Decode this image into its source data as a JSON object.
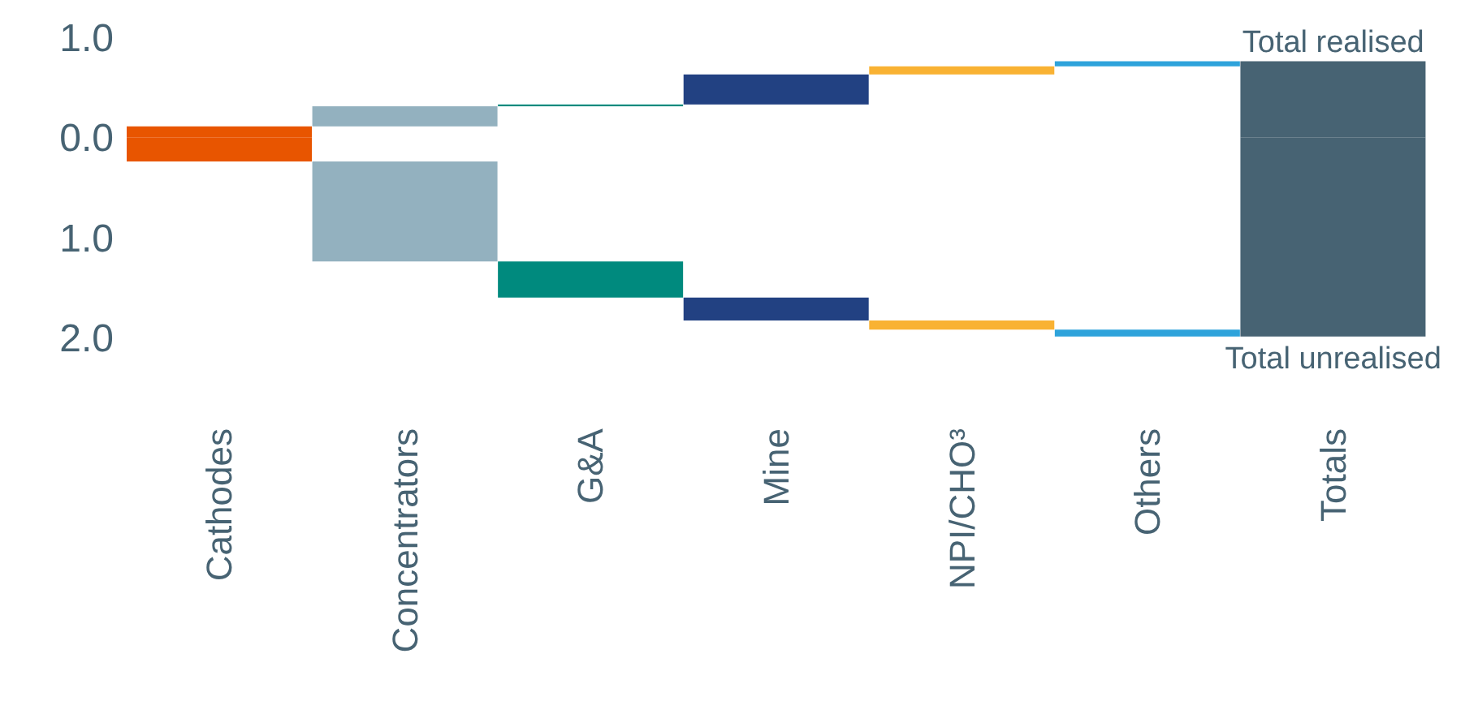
{
  "chart_data": {
    "type": "bar",
    "categories": [
      "Cathodes",
      "Concentrators",
      "G&A",
      "Mine",
      "NPI/CHO³",
      "Others",
      "Totals"
    ],
    "series": [
      {
        "colors": [
          "#e85500",
          "#93b1bf",
          "#008a7e",
          "#224182",
          "#f9b233",
          "#2ea3db",
          "#476373"
        ],
        "values": [
          0.11,
          0.2,
          0.02,
          0.3,
          0.08,
          0.05,
          0.76
        ],
        "base": [
          0,
          0.11,
          0.31,
          0.33,
          0.63,
          0.71,
          0
        ]
      },
      {
        "colors": [
          "#e85500",
          "#93b1bf",
          "#008a7e",
          "#224182",
          "#f9b233",
          "#2ea3db",
          "#476373"
        ],
        "values": [
          -0.24,
          -1.0,
          -0.36,
          -0.23,
          -0.09,
          -0.07,
          -1.99
        ],
        "base": [
          0,
          -0.24,
          -1.24,
          -1.6,
          -1.83,
          -1.92,
          0
        ]
      }
    ],
    "ylim": [
      -2,
      1
    ],
    "yticks": [
      {
        "value": 1,
        "label": "1.0"
      },
      {
        "value": 0,
        "label": "0.0"
      },
      {
        "value": -1,
        "label": "1.0"
      },
      {
        "value": -2,
        "label": "2.0"
      }
    ],
    "annotations": [
      {
        "text": "Total realised",
        "x": "Totals",
        "y": 0.76
      },
      {
        "text": "Total unrealised",
        "x": "Totals",
        "y": -1.99
      }
    ]
  }
}
